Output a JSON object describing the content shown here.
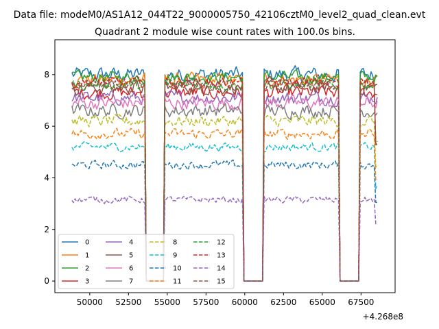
{
  "chart_data": {
    "type": "line",
    "suptitle": "Data file: modeM0/AS1A12_044T22_9000005750_42106cztM0_level2_quad_clean.evt",
    "title": "Quadrant 2 module wise count rates with 100.0s bins.",
    "xlabel": "",
    "ylabel": "",
    "x_offset_label": "+4.268e8",
    "x_range": [
      48850,
      68600
    ],
    "xlim": [
      47750,
      69700
    ],
    "ylim": [
      -0.45,
      9.35
    ],
    "x_ticks": [
      50000,
      52500,
      55000,
      57500,
      60000,
      62500,
      65000,
      67500
    ],
    "x_tick_labels": [
      "50000",
      "52500",
      "55000",
      "57500",
      "60000",
      "62500",
      "65000",
      "67500"
    ],
    "y_ticks": [
      0,
      2,
      4,
      6,
      8
    ],
    "y_tick_labels": [
      "0",
      "2",
      "4",
      "6",
      "8"
    ],
    "gaps": [
      [
        53650,
        54750
      ],
      [
        59950,
        61150
      ],
      [
        66150,
        67350
      ]
    ],
    "legend_position": "lower-left",
    "series": [
      {
        "name": "0",
        "color": "#1f77b4",
        "style": "solid",
        "level": 8.0,
        "noise": 0.45
      },
      {
        "name": "1",
        "color": "#ff7f0e",
        "style": "solid",
        "level": 7.8,
        "noise": 0.4
      },
      {
        "name": "2",
        "color": "#2ca02c",
        "style": "solid",
        "level": 7.9,
        "noise": 0.35
      },
      {
        "name": "3",
        "color": "#d62728",
        "style": "solid",
        "level": 7.3,
        "noise": 0.4
      },
      {
        "name": "4",
        "color": "#9467bd",
        "style": "solid",
        "level": 7.1,
        "noise": 0.4
      },
      {
        "name": "5",
        "color": "#8c564b",
        "style": "solid",
        "level": 7.5,
        "noise": 0.4
      },
      {
        "name": "6",
        "color": "#e377c2",
        "style": "solid",
        "level": 6.9,
        "noise": 0.4
      },
      {
        "name": "7",
        "color": "#7f7f7f",
        "style": "solid",
        "level": 6.6,
        "noise": 0.4
      },
      {
        "name": "8",
        "color": "#bcbd22",
        "style": "dashed",
        "level": 6.2,
        "noise": 0.35
      },
      {
        "name": "9",
        "color": "#17becf",
        "style": "dashed",
        "level": 5.2,
        "noise": 0.25
      },
      {
        "name": "10",
        "color": "#1f77b4",
        "style": "dashed",
        "level": 4.5,
        "noise": 0.25
      },
      {
        "name": "11",
        "color": "#ff7f0e",
        "style": "dashed",
        "level": 5.7,
        "noise": 0.3
      },
      {
        "name": "12",
        "color": "#2ca02c",
        "style": "dashed",
        "level": 7.6,
        "noise": 0.3
      },
      {
        "name": "13",
        "color": "#d62728",
        "style": "dashed",
        "level": 7.7,
        "noise": 0.3
      },
      {
        "name": "14",
        "color": "#9467bd",
        "style": "dashed",
        "level": 3.15,
        "noise": 0.2
      },
      {
        "name": "15",
        "color": "#8c564b",
        "style": "dashed",
        "level": 7.6,
        "noise": 0.3
      }
    ]
  }
}
